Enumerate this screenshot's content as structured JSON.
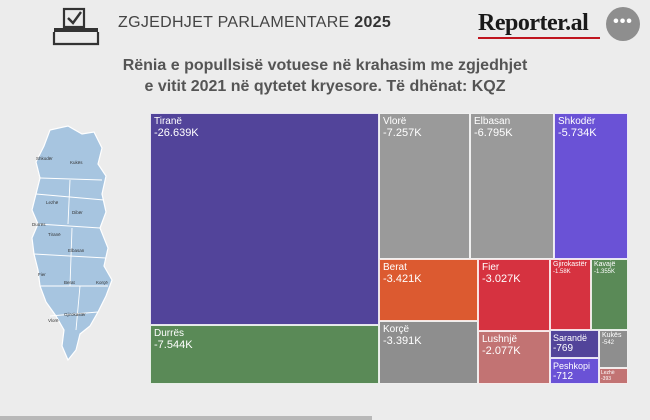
{
  "header": {
    "title": "ZGJEDHJET PARLAMENTARE",
    "year": "2025",
    "brand": "Reporter.al",
    "menu_glyph": "•••",
    "icon": "ballot-box-icon",
    "menu_icon": "more-dots-icon"
  },
  "subtitle": {
    "line1": "Rënia e popullsisë votuese në krahasim me zgjedhjet",
    "line2": "e vitit 2021 në qytetet kryesore. Të dhënat: KQZ"
  },
  "map": {
    "icon": "albania-map-icon",
    "fill": "#a7c5e0",
    "labels": [
      "Shkodër",
      "Kukës",
      "Lezhë",
      "Dibër",
      "Durrës",
      "Tiranë",
      "Elbasan",
      "Fier",
      "Berat",
      "Korçë",
      "Gjirokastër",
      "Vlorë"
    ]
  },
  "chart_data": {
    "type": "treemap",
    "title": "",
    "items": [
      {
        "label": "Tiranë",
        "value": -26639,
        "display": "-26.639K",
        "color": "#52449a"
      },
      {
        "label": "Durrës",
        "value": -7544,
        "display": "-7.544K",
        "color": "#5a8a57"
      },
      {
        "label": "Vlorë",
        "value": -7257,
        "display": "-7.257K",
        "color": "#9a9a9a"
      },
      {
        "label": "Elbasan",
        "value": -6795,
        "display": "-6.795K",
        "color": "#9a9a9a"
      },
      {
        "label": "Shkodër",
        "value": -5734,
        "display": "-5.734K",
        "color": "#6a52d6"
      },
      {
        "label": "Berat",
        "value": -3421,
        "display": "-3.421K",
        "color": "#dc5a30"
      },
      {
        "label": "Korçë",
        "value": -3391,
        "display": "-3.391K",
        "color": "#8e8e8e"
      },
      {
        "label": "Fier",
        "value": -3027,
        "display": "-3.027K",
        "color": "#d63240"
      },
      {
        "label": "Lushnjë",
        "value": -2077,
        "display": "-2.077K",
        "color": "#c27373"
      },
      {
        "label": "Gjirokastër",
        "value": -1580,
        "display": "-1.58K",
        "color": "#d63240"
      },
      {
        "label": "Kavajë",
        "value": -1355,
        "display": "-1.355K",
        "color": "#5a8a57"
      },
      {
        "label": "Sarandë",
        "value": -769,
        "display": "-769",
        "color": "#52449a"
      },
      {
        "label": "Peshkopi",
        "value": -712,
        "display": "-712",
        "color": "#6a52d6"
      },
      {
        "label": "Kukës",
        "value": -542,
        "display": "-542",
        "color": "#8e8e8e"
      },
      {
        "label": "Lezhë",
        "value": -393,
        "display": "-393",
        "color": "#c27373"
      }
    ]
  }
}
